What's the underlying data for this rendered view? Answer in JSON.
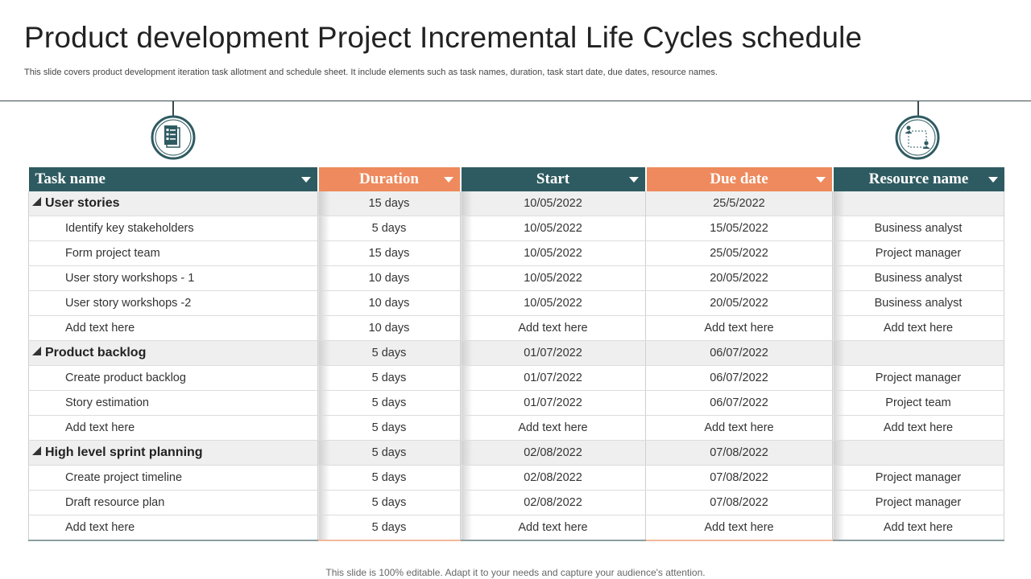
{
  "title": "Product development Project Incremental Life Cycles schedule",
  "subtitle": "This slide covers product development iteration task allotment and schedule sheet. It include elements such as task names, duration, task start date, due dates, resource names.",
  "icons": {
    "left": "checklist-document-icon",
    "right": "resource-network-icon"
  },
  "colors": {
    "teal": "#2e5b61",
    "orange": "#ee8a5d"
  },
  "table": {
    "headers": [
      "Task name",
      "Duration",
      "Start",
      "Due date",
      "Resource name"
    ],
    "rows": [
      {
        "type": "group",
        "cells": [
          "User stories",
          "15 days",
          "10/05/2022",
          "25/5/2022",
          ""
        ]
      },
      {
        "type": "task",
        "cells": [
          "Identify key stakeholders",
          "5 days",
          "10/05/2022",
          "15/05/2022",
          "Business analyst"
        ]
      },
      {
        "type": "task",
        "cells": [
          "Form project team",
          "15 days",
          "10/05/2022",
          "25/05/2022",
          "Project manager"
        ]
      },
      {
        "type": "task",
        "cells": [
          "User story workshops - 1",
          "10 days",
          "10/05/2022",
          "20/05/2022",
          "Business analyst"
        ]
      },
      {
        "type": "task",
        "cells": [
          "User story workshops -2",
          "10 days",
          "10/05/2022",
          "20/05/2022",
          "Business analyst"
        ]
      },
      {
        "type": "task",
        "cells": [
          "Add text here",
          "10 days",
          "Add text here",
          "Add text here",
          "Add text here"
        ]
      },
      {
        "type": "group",
        "cells": [
          "Product backlog",
          "5 days",
          "01/07/2022",
          "06/07/2022",
          ""
        ]
      },
      {
        "type": "task",
        "cells": [
          "Create product backlog",
          "5 days",
          "01/07/2022",
          "06/07/2022",
          "Project manager"
        ]
      },
      {
        "type": "task",
        "cells": [
          "Story estimation",
          "5 days",
          "01/07/2022",
          "06/07/2022",
          "Project team"
        ]
      },
      {
        "type": "task",
        "cells": [
          "Add text here",
          "5 days",
          "Add text here",
          "Add text here",
          "Add text here"
        ]
      },
      {
        "type": "group",
        "cells": [
          "High level sprint planning",
          "5 days",
          "02/08/2022",
          "07/08/2022",
          ""
        ]
      },
      {
        "type": "task",
        "cells": [
          "Create project timeline",
          "5 days",
          "02/08/2022",
          "07/08/2022",
          "Project manager"
        ]
      },
      {
        "type": "task",
        "cells": [
          "Draft resource plan",
          "5 days",
          "02/08/2022",
          "07/08/2022",
          "Project manager"
        ]
      },
      {
        "type": "task",
        "cells": [
          "Add text here",
          "5 days",
          "Add text here",
          "Add text here",
          "Add text here"
        ]
      }
    ]
  },
  "footer": "This slide is 100% editable. Adapt it to your needs and capture your audience's attention."
}
